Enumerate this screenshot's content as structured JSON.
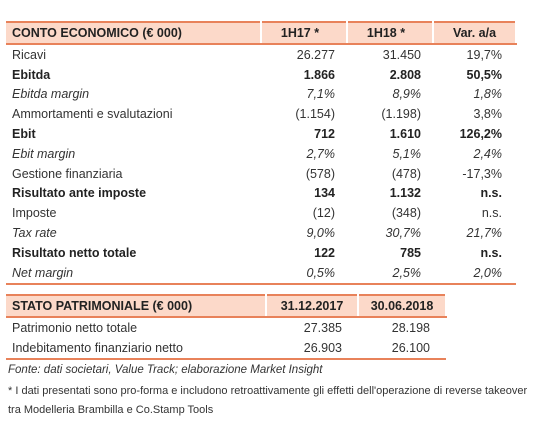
{
  "table1": {
    "header": [
      "CONTO ECONOMICO (€ 000)",
      "1H17 *",
      "1H18 *",
      "Var. a/a"
    ],
    "rows": [
      [
        "Ricavi",
        "26.277",
        "31.450",
        "19,7%"
      ],
      [
        "Ebitda",
        "1.866",
        "2.808",
        "50,5%"
      ],
      [
        "Ebitda margin",
        "7,1%",
        "8,9%",
        "1,8%"
      ],
      [
        "Ammortamenti e svalutazioni",
        "(1.154)",
        "(1.198)",
        "3,8%"
      ],
      [
        "Ebit",
        "712",
        "1.610",
        "126,2%"
      ],
      [
        "Ebit margin",
        "2,7%",
        "5,1%",
        "2,4%"
      ],
      [
        "Gestione finanziaria",
        "(578)",
        "(478)",
        "-17,3%"
      ],
      [
        "Risultato ante imposte",
        "134",
        "1.132",
        "n.s."
      ],
      [
        "Imposte",
        "(12)",
        "(348)",
        "n.s."
      ],
      [
        "Tax rate",
        "9,0%",
        "30,7%",
        "21,7%"
      ],
      [
        "Risultato netto totale",
        "122",
        "785",
        "n.s."
      ],
      [
        "Net margin",
        "0,5%",
        "2,5%",
        "2,0%"
      ]
    ]
  },
  "table2": {
    "header": [
      "STATO PATRIMONIALE (€ 000)",
      "31.12.2017",
      "30.06.2018"
    ],
    "rows": [
      [
        "Patrimonio netto totale",
        "27.385",
        "28.198"
      ],
      [
        "Indebitamento finanziario netto",
        "26.903",
        "26.100"
      ]
    ]
  },
  "source": "Fonte: dati societari, Value Track; elaborazione Market Insight",
  "note": "* I dati presentati sono pro-forma e includono retroattivamente gli effetti dell'operazione di reverse takeover tra Modelleria Brambilla e Co.Stamp Tools"
}
